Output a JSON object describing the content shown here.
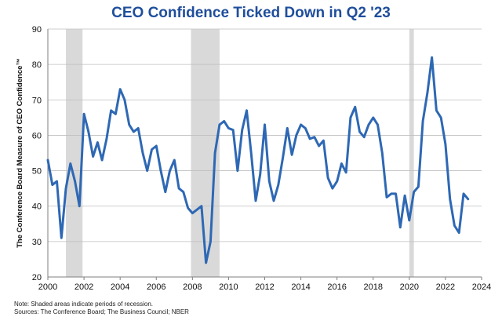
{
  "chart_data": {
    "type": "line",
    "title": "CEO Confidence Ticked Down in Q2 '23",
    "ylabel": "The Conference Board Measure of CEO Confidence™",
    "xlabel": "",
    "xlim": [
      2000,
      2024
    ],
    "ylim": [
      20,
      90
    ],
    "x_ticks": [
      "2000",
      "2002",
      "2004",
      "2006",
      "2008",
      "2010",
      "2012",
      "2014",
      "2016",
      "2018",
      "2020",
      "2022",
      "2024"
    ],
    "y_ticks": [
      "20",
      "30",
      "40",
      "50",
      "60",
      "70",
      "80",
      "90"
    ],
    "grid": "horizontal",
    "line_color": "#2e68b4",
    "recession_color": "#d9d9d9",
    "recessions": [
      [
        2001.0,
        2001.92
      ],
      [
        2007.92,
        2009.5
      ],
      [
        2020.0,
        2020.25
      ]
    ],
    "series": [
      {
        "x": [
          2000.0,
          2000.25,
          2000.5,
          2000.75,
          2001.0,
          2001.25,
          2001.5,
          2001.75,
          2002.0,
          2002.25,
          2002.5,
          2002.75,
          2003.0,
          2003.25,
          2003.5,
          2003.75,
          2004.0,
          2004.25,
          2004.5,
          2004.75,
          2005.0,
          2005.25,
          2005.5,
          2005.75,
          2006.0,
          2006.25,
          2006.5,
          2006.75,
          2007.0,
          2007.25,
          2007.5,
          2007.75,
          2008.0,
          2008.25,
          2008.5,
          2008.75,
          2009.0,
          2009.25,
          2009.5,
          2009.75,
          2010.0,
          2010.25,
          2010.5,
          2010.75,
          2011.0,
          2011.25,
          2011.5,
          2011.75,
          2012.0,
          2012.25,
          2012.5,
          2012.75,
          2013.0,
          2013.25,
          2013.5,
          2013.75,
          2014.0,
          2014.25,
          2014.5,
          2014.75,
          2015.0,
          2015.25,
          2015.5,
          2015.75,
          2016.0,
          2016.25,
          2016.5,
          2016.75,
          2017.0,
          2017.25,
          2017.5,
          2017.75,
          2018.0,
          2018.25,
          2018.5,
          2018.75,
          2019.0,
          2019.25,
          2019.5,
          2019.75,
          2020.0,
          2020.25,
          2020.5,
          2020.75,
          2021.0,
          2021.25,
          2021.5,
          2021.75,
          2022.0,
          2022.25,
          2022.5,
          2022.75,
          2023.0,
          2023.25
        ],
        "values": [
          53,
          46,
          47,
          31,
          45,
          52,
          47,
          40,
          66,
          61,
          54,
          58,
          53,
          59,
          67,
          66,
          73,
          70,
          63,
          61,
          62,
          55,
          50,
          56,
          57,
          50,
          44,
          50,
          53,
          45,
          44,
          39.5,
          38,
          39,
          40,
          24,
          30,
          55,
          63,
          64,
          62,
          61.5,
          50,
          61.5,
          67,
          55,
          41.5,
          49,
          63,
          47,
          41.5,
          46,
          53.5,
          62,
          54.5,
          60,
          63,
          62,
          59,
          59.5,
          57,
          58.5,
          48,
          45,
          47,
          52,
          49.5,
          65,
          68,
          61,
          59.5,
          63,
          65,
          63,
          55,
          42.5,
          43.5,
          43.5,
          34,
          43,
          36,
          44,
          45.5,
          64,
          72,
          82,
          67,
          65,
          57.5,
          42,
          34.5,
          32.5,
          43.5,
          42
        ]
      }
    ]
  },
  "notes": {
    "line1": "Note: Shaded areas indicate periods of  recession.",
    "line2": "Sources: The  Conference Board; The Business Council; NBER"
  }
}
